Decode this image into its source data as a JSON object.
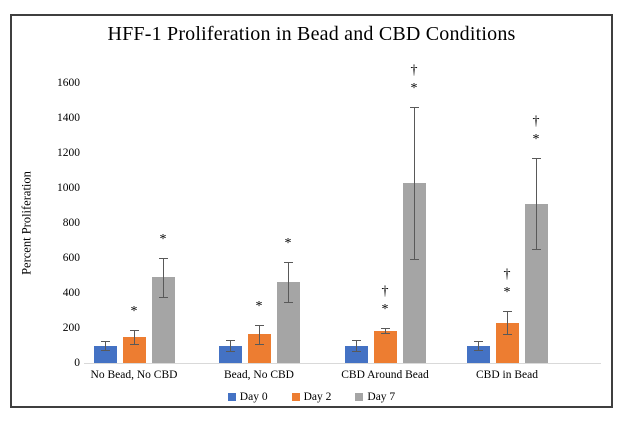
{
  "chart_data": {
    "type": "bar",
    "title": "HFF-1 Proliferation in Bead and CBD Conditions",
    "xlabel": "",
    "ylabel": "Percent Proliferation",
    "ylim": [
      0,
      1600
    ],
    "yticks": [
      0,
      200,
      400,
      600,
      800,
      1000,
      1200,
      1400,
      1600
    ],
    "grid": false,
    "legend_position": "bottom",
    "categories": [
      "No Bead, No CBD",
      "Bead, No CBD",
      "CBD Around Bead",
      "CBD in Bead"
    ],
    "series": [
      {
        "name": "Day 0",
        "color": "#4472C4",
        "values": [
          100,
          100,
          100,
          100
        ],
        "errors": [
          25,
          30,
          30,
          25
        ],
        "annotations": [
          [],
          [],
          [],
          []
        ]
      },
      {
        "name": "Day 2",
        "color": "#ED7D31",
        "values": [
          150,
          165,
          185,
          230
        ],
        "errors": [
          40,
          55,
          15,
          65
        ],
        "annotations": [
          [
            "*"
          ],
          [
            "*"
          ],
          [
            "*",
            "†"
          ],
          [
            "*",
            "†"
          ]
        ]
      },
      {
        "name": "Day 7",
        "color": "#A5A5A5",
        "values": [
          490,
          465,
          1030,
          910
        ],
        "errors": [
          110,
          115,
          435,
          260
        ],
        "annotations": [
          [
            "*"
          ],
          [
            "*"
          ],
          [
            "*",
            "†"
          ],
          [
            "*",
            "†"
          ]
        ]
      }
    ],
    "error_bar_color": "#595959",
    "axis_line_color": "#D9D9D9"
  }
}
